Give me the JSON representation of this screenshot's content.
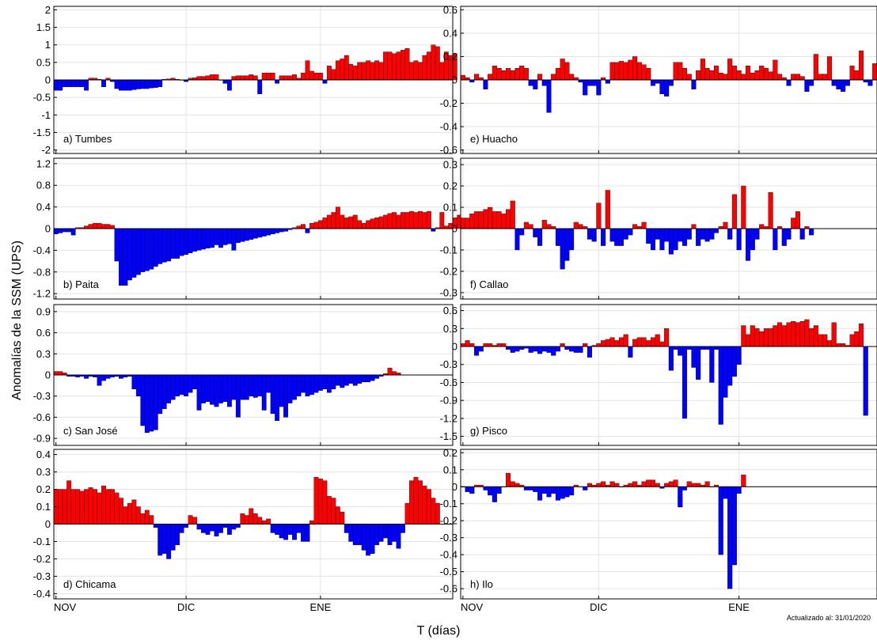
{
  "figure": {
    "ylabel": "Anomalías de la SSM (UPS)",
    "xlabel": "T (días)",
    "updated": "Actualizado al: 31/01/2020",
    "month_labels": [
      "NOV",
      "DIC",
      "ENE"
    ],
    "colors": {
      "positive": "#ff0000",
      "negative": "#0000ff",
      "grid": "#e3e3e3"
    }
  },
  "chart_data": [
    {
      "type": "bar",
      "label": "a) Tumbes",
      "ylim": [
        -2.1,
        2.1
      ],
      "yticks": [
        -2,
        -1.5,
        -1,
        -0.5,
        0,
        0.5,
        1,
        1.5,
        2
      ],
      "ytick_labels": [
        "-2",
        "-1.5",
        "-1",
        "-0.5",
        "0",
        "0.5",
        "1",
        "1.5",
        "2"
      ],
      "x_start": 1,
      "values": [
        -0.3,
        -0.3,
        -0.2,
        -0.2,
        -0.2,
        -0.2,
        -0.2,
        -0.3,
        0.05,
        0.05,
        0.02,
        -0.2,
        0.05,
        -0.05,
        -0.25,
        -0.3,
        -0.3,
        -0.3,
        -0.28,
        -0.26,
        -0.25,
        -0.25,
        -0.23,
        -0.22,
        -0.2,
        0.02,
        0.03,
        0.05,
        0.02,
        0.0,
        -0.05,
        0.05,
        0.06,
        0.1,
        0.1,
        0.12,
        0.15,
        0.15,
        0.0,
        -0.1,
        -0.3,
        0.1,
        0.12,
        0.12,
        0.12,
        0.15,
        0.12,
        -0.4,
        0.2,
        0.2,
        0.2,
        -0.1,
        0.12,
        0.12,
        0.12,
        0.15,
        0.05,
        0.2,
        0.55,
        0.25,
        0.2,
        0.2,
        -0.1,
        0.4,
        0.3,
        0.55,
        0.6,
        0.7,
        0.45,
        0.4,
        0.5,
        0.5,
        0.55,
        0.5,
        0.55,
        0.5,
        0.8,
        0.8,
        0.75,
        0.8,
        0.85,
        0.9,
        0.5,
        0.55,
        0.5,
        0.7,
        0.8,
        1.0,
        0.95,
        0.5,
        0.8,
        0.7,
        0.75
      ]
    },
    {
      "type": "bar",
      "label": "b) Paita",
      "ylim": [
        -1.3,
        1.3
      ],
      "yticks": [
        -1.2,
        -0.8,
        -0.4,
        0,
        0.4,
        0.8,
        1.2
      ],
      "ytick_labels": [
        "-1.2",
        "-0.8",
        "-0.4",
        "0",
        "0.4",
        "0.8",
        "1.2"
      ],
      "x_start": 1,
      "values": [
        -0.1,
        -0.08,
        -0.06,
        -0.06,
        -0.12,
        0.02,
        0.02,
        0.05,
        0.08,
        0.1,
        0.1,
        0.08,
        0.08,
        0.06,
        -0.6,
        -1.05,
        -1.05,
        -0.95,
        -0.9,
        -0.85,
        -0.8,
        -0.78,
        -0.75,
        -0.7,
        -0.65,
        -0.62,
        -0.6,
        -0.55,
        -0.55,
        -0.5,
        -0.48,
        -0.45,
        -0.42,
        -0.4,
        -0.38,
        -0.36,
        -0.35,
        -0.3,
        -0.35,
        -0.3,
        -0.28,
        -0.4,
        -0.26,
        -0.24,
        -0.22,
        -0.2,
        -0.18,
        -0.16,
        -0.14,
        -0.12,
        -0.1,
        -0.08,
        -0.06,
        -0.05,
        -0.02,
        0.02,
        0.05,
        0.08,
        -0.08,
        0.1,
        0.12,
        0.15,
        0.2,
        0.25,
        0.3,
        0.4,
        0.25,
        0.2,
        0.22,
        0.25,
        0.15,
        0.1,
        0.15,
        0.18,
        0.2,
        0.22,
        0.25,
        0.28,
        0.3,
        0.25,
        0.3,
        0.3,
        0.32,
        0.3,
        0.32,
        0.3,
        0.32,
        -0.05,
        0.02,
        0.3,
        0.05,
        0.1,
        0.2,
        0.25
      ]
    },
    {
      "type": "bar",
      "label": "c) San José",
      "ylim": [
        -1.0,
        1.0
      ],
      "yticks": [
        -0.9,
        -0.6,
        -0.3,
        0,
        0.3,
        0.6,
        0.9
      ],
      "ytick_labels": [
        "-0.9",
        "-0.6",
        "-0.3",
        "0",
        "0.3",
        "0.6",
        "0.9"
      ],
      "x_start": 1,
      "values": [
        0.05,
        0.05,
        0.03,
        -0.02,
        -0.02,
        -0.03,
        -0.02,
        -0.05,
        -0.02,
        -0.03,
        -0.15,
        -0.08,
        -0.05,
        -0.03,
        -0.02,
        -0.05,
        -0.03,
        -0.02,
        -0.2,
        -0.3,
        -0.72,
        -0.82,
        -0.8,
        -0.78,
        -0.55,
        -0.48,
        -0.4,
        -0.35,
        -0.3,
        -0.28,
        -0.3,
        -0.25,
        -0.2,
        -0.5,
        -0.4,
        -0.38,
        -0.42,
        -0.45,
        -0.4,
        -0.38,
        -0.45,
        -0.35,
        -0.6,
        -0.35,
        -0.35,
        -0.3,
        -0.32,
        -0.3,
        -0.5,
        -0.25,
        -0.55,
        -0.65,
        -0.45,
        -0.6,
        -0.4,
        -0.35,
        -0.3,
        -0.25,
        -0.3,
        -0.28,
        -0.25,
        -0.22,
        -0.2,
        -0.25,
        -0.2,
        -0.15,
        -0.18,
        -0.15,
        -0.12,
        -0.15,
        -0.12,
        -0.1,
        -0.1,
        -0.08,
        -0.05,
        -0.02,
        0.02,
        0.1,
        0.05,
        0.03
      ]
    },
    {
      "type": "bar",
      "label": "d) Chicama",
      "ylim": [
        -0.43,
        0.43
      ],
      "yticks": [
        -0.4,
        -0.3,
        -0.2,
        -0.1,
        0,
        0.1,
        0.2,
        0.3,
        0.4
      ],
      "ytick_labels": [
        "-0.4",
        "-0.3",
        "-0.2",
        "-0.1",
        "0",
        "0.1",
        "0.2",
        "0.3",
        "0.4"
      ],
      "x_start": 1,
      "values": [
        0.2,
        0.2,
        0.2,
        0.25,
        0.2,
        0.2,
        0.19,
        0.2,
        0.21,
        0.2,
        0.18,
        0.22,
        0.2,
        0.2,
        0.18,
        0.15,
        0.1,
        0.12,
        0.14,
        0.1,
        0.06,
        0.08,
        0.05,
        -0.02,
        -0.18,
        -0.17,
        -0.2,
        -0.15,
        -0.12,
        -0.05,
        -0.02,
        0.05,
        0.04,
        -0.03,
        -0.05,
        -0.06,
        -0.04,
        -0.07,
        -0.05,
        -0.02,
        -0.06,
        -0.03,
        -0.02,
        0.06,
        0.05,
        0.09,
        0.06,
        0.04,
        0.02,
        0.03,
        -0.05,
        -0.06,
        -0.08,
        -0.09,
        -0.06,
        -0.09,
        -0.05,
        -0.1,
        -0.1,
        0.02,
        0.27,
        0.26,
        0.25,
        0.16,
        0.15,
        0.1,
        0.07,
        -0.05,
        -0.1,
        -0.12,
        -0.12,
        -0.15,
        -0.18,
        -0.17,
        -0.12,
        -0.1,
        -0.08,
        -0.12,
        -0.1,
        -0.14,
        -0.05,
        0.12,
        0.25,
        0.27,
        0.25,
        0.22,
        0.2,
        0.15,
        0.12
      ]
    },
    {
      "type": "bar",
      "label": "e) Huacho",
      "ylim": [
        -0.63,
        0.63
      ],
      "yticks": [
        -0.6,
        -0.4,
        -0.2,
        0,
        0.2,
        0.4,
        0.6
      ],
      "ytick_labels": [
        "-0.6",
        "-0.4",
        "-0.2",
        "0",
        "0.2",
        "0.4",
        "0.6"
      ],
      "x_start": 1,
      "values": [
        0.04,
        0.02,
        -0.02,
        0.05,
        0.02,
        -0.08,
        0.05,
        0.12,
        0.1,
        0.08,
        0.1,
        0.08,
        0.1,
        0.12,
        0.1,
        -0.05,
        -0.08,
        0.05,
        -0.05,
        -0.28,
        0.05,
        0.1,
        0.18,
        0.15,
        0.05,
        0.02,
        -0.02,
        -0.13,
        -0.05,
        -0.05,
        -0.13,
        0.02,
        -0.03,
        0.15,
        0.15,
        0.16,
        0.15,
        0.17,
        0.2,
        0.15,
        0.13,
        0.1,
        -0.05,
        -0.03,
        -0.12,
        -0.14,
        -0.05,
        0.15,
        0.15,
        0.1,
        0.05,
        -0.08,
        0.08,
        0.18,
        0.1,
        0.08,
        0.12,
        0.06,
        0.05,
        0.18,
        0.12,
        0.08,
        0.05,
        0.12,
        0.06,
        0.08,
        0.12,
        0.1,
        0.07,
        0.17,
        0.05,
        0.02,
        -0.05,
        0.05,
        0.05,
        0.03,
        -0.1,
        -0.05,
        0.22,
        0.05,
        0.05,
        0.2,
        -0.05,
        -0.08,
        -0.1,
        -0.05,
        0.12,
        0.08,
        0.25,
        -0.02,
        -0.05,
        0.14
      ]
    },
    {
      "type": "bar",
      "label": "f) Callao",
      "ylim": [
        -0.33,
        0.33
      ],
      "yticks": [
        -0.3,
        -0.2,
        -0.1,
        0,
        0.1,
        0.2,
        0.3
      ],
      "ytick_labels": [
        "-0.3",
        "-0.2",
        "-0.1",
        "0",
        "0.1",
        "0.2",
        "0.3"
      ],
      "x_start": 1,
      "values": [
        0.05,
        0.05,
        0.07,
        0.08,
        0.08,
        0.09,
        0.1,
        0.08,
        0.08,
        0.07,
        0.09,
        0.13,
        -0.1,
        -0.03,
        0.03,
        0.02,
        -0.04,
        -0.08,
        0.04,
        0.02,
        0.01,
        -0.08,
        -0.19,
        -0.15,
        -0.1,
        0.03,
        0.02,
        0.01,
        -0.05,
        -0.06,
        0.12,
        -0.08,
        0.18,
        -0.06,
        -0.08,
        -0.08,
        -0.05,
        -0.03,
        0.02,
        0.01,
        0.03,
        -0.07,
        -0.1,
        -0.05,
        -0.1,
        -0.06,
        -0.12,
        -0.1,
        -0.06,
        -0.08,
        -0.05,
        0.02,
        -0.08,
        -0.05,
        -0.06,
        -0.05,
        -0.02,
        0.01,
        0.03,
        -0.05,
        0.16,
        -0.1,
        0.2,
        -0.15,
        -0.1,
        -0.05,
        0.02,
        0.01,
        0.17,
        -0.1,
        0.01,
        -0.08,
        -0.05,
        0.05,
        0.08,
        -0.05,
        0.01,
        -0.03
      ]
    },
    {
      "type": "bar",
      "label": "g) Pisco",
      "ylim": [
        -1.65,
        0.7
      ],
      "yticks": [
        -1.5,
        -1.2,
        -0.9,
        -0.6,
        -0.3,
        0,
        0.3,
        0.6
      ],
      "ytick_labels": [
        "-1.5",
        "-1.2",
        "-0.9",
        "-0.6",
        "-0.3",
        "0",
        "0.3",
        "0.6"
      ],
      "x_start": 1,
      "values": [
        0.05,
        0.1,
        0.05,
        -0.15,
        -0.08,
        0.05,
        0.05,
        0.02,
        0.05,
        0.05,
        -0.05,
        -0.1,
        -0.08,
        -0.05,
        -0.03,
        -0.1,
        -0.08,
        -0.12,
        -0.08,
        -0.1,
        -0.15,
        -0.08,
        0.05,
        -0.05,
        -0.08,
        -0.1,
        -0.1,
        0.05,
        -0.18,
        0.02,
        0.05,
        0.1,
        0.12,
        0.15,
        0.1,
        0.15,
        0.2,
        -0.18,
        0.12,
        0.15,
        0.15,
        0.1,
        0.15,
        0.2,
        0.08,
        0.3,
        -0.4,
        -0.05,
        -0.15,
        -1.2,
        -0.05,
        -0.35,
        -0.55,
        -0.05,
        -0.05,
        -0.6,
        -0.05,
        -1.3,
        -0.85,
        -0.65,
        -0.5,
        -0.3,
        0.35,
        0.2,
        0.35,
        0.3,
        0.25,
        0.3,
        0.3,
        0.35,
        0.4,
        0.35,
        0.4,
        0.42,
        0.4,
        0.42,
        0.45,
        0.3,
        0.35,
        0.2,
        0.2,
        0.1,
        0.4,
        0.05,
        0.05,
        0.02,
        0.2,
        0.25,
        0.38,
        -1.15
      ]
    },
    {
      "type": "bar",
      "label": "h) Ilo",
      "ylim": [
        -0.66,
        0.22
      ],
      "yticks": [
        -0.6,
        -0.5,
        -0.4,
        -0.3,
        -0.2,
        -0.1,
        0,
        0.1,
        0.2
      ],
      "ytick_labels": [
        "-0.6",
        "-0.5",
        "-0.4",
        "-0.3",
        "-0.2",
        "-0.1",
        "0",
        "0.1",
        "0.2"
      ],
      "x_start": 1,
      "values": [
        0.0,
        -0.03,
        -0.04,
        0.01,
        0.01,
        -0.02,
        -0.05,
        -0.09,
        -0.04,
        0.0,
        0.08,
        0.03,
        0.02,
        0.01,
        -0.02,
        -0.02,
        -0.03,
        -0.08,
        -0.04,
        -0.06,
        -0.04,
        -0.08,
        -0.07,
        -0.06,
        -0.05,
        0.01,
        0.0,
        -0.02,
        0.02,
        0.01,
        0.02,
        0.03,
        0.01,
        0.03,
        0.02,
        0.0,
        0.01,
        0.02,
        0.03,
        0.01,
        0.03,
        0.04,
        0.04,
        0.02,
        -0.01,
        0.02,
        0.03,
        0.04,
        -0.12,
        -0.02,
        0.03,
        0.02,
        0.02,
        0.01,
        0.03,
        0.0,
        0.01,
        -0.4,
        -0.07,
        -0.6,
        -0.46,
        -0.04,
        0.07
      ]
    }
  ]
}
